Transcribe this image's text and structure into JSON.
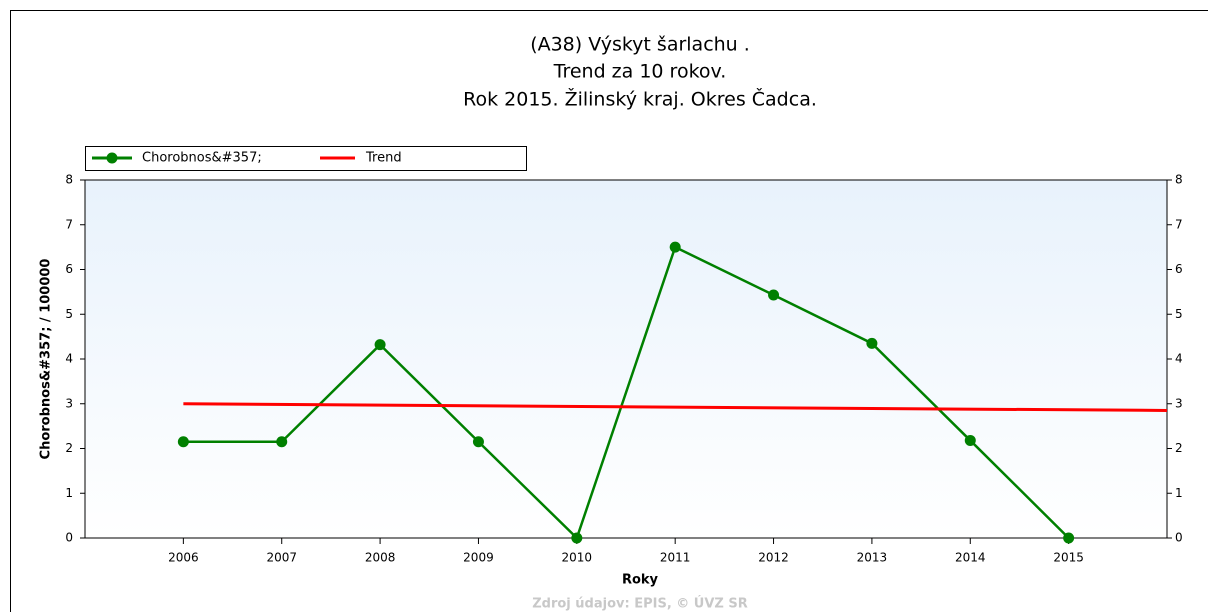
{
  "chart_data": {
    "type": "line",
    "title": [
      "(A38) Výskyt šarlachu .",
      "Trend za 10 rokov.",
      "Rok 2015. Žilinský kraj. Okres Čadca."
    ],
    "x_label": "Roky",
    "y_label": "Chorobnos&#357; / 100000",
    "source": "Zdroj údajov: EPIS, © ÚVZ SR",
    "x": [
      2006,
      2007,
      2008,
      2009,
      2010,
      2011,
      2012,
      2013,
      2014,
      2015
    ],
    "series": [
      {
        "name": "Chorobnos&#357;",
        "color": "#008000",
        "values": [
          2.15,
          2.15,
          4.32,
          2.15,
          0,
          6.5,
          5.43,
          4.35,
          2.18,
          0
        ]
      },
      {
        "name": "Trend",
        "color": "#ff0000",
        "x": [
          2006,
          2016
        ],
        "values": [
          3.0,
          2.85
        ]
      }
    ],
    "xlim": [
      2005,
      2016
    ],
    "xticks": [
      2006,
      2007,
      2008,
      2009,
      2010,
      2011,
      2012,
      2013,
      2014,
      2015
    ],
    "ylim": [
      0,
      8
    ],
    "yticks": [
      0,
      1,
      2,
      3,
      4,
      5,
      6,
      7,
      8
    ]
  }
}
